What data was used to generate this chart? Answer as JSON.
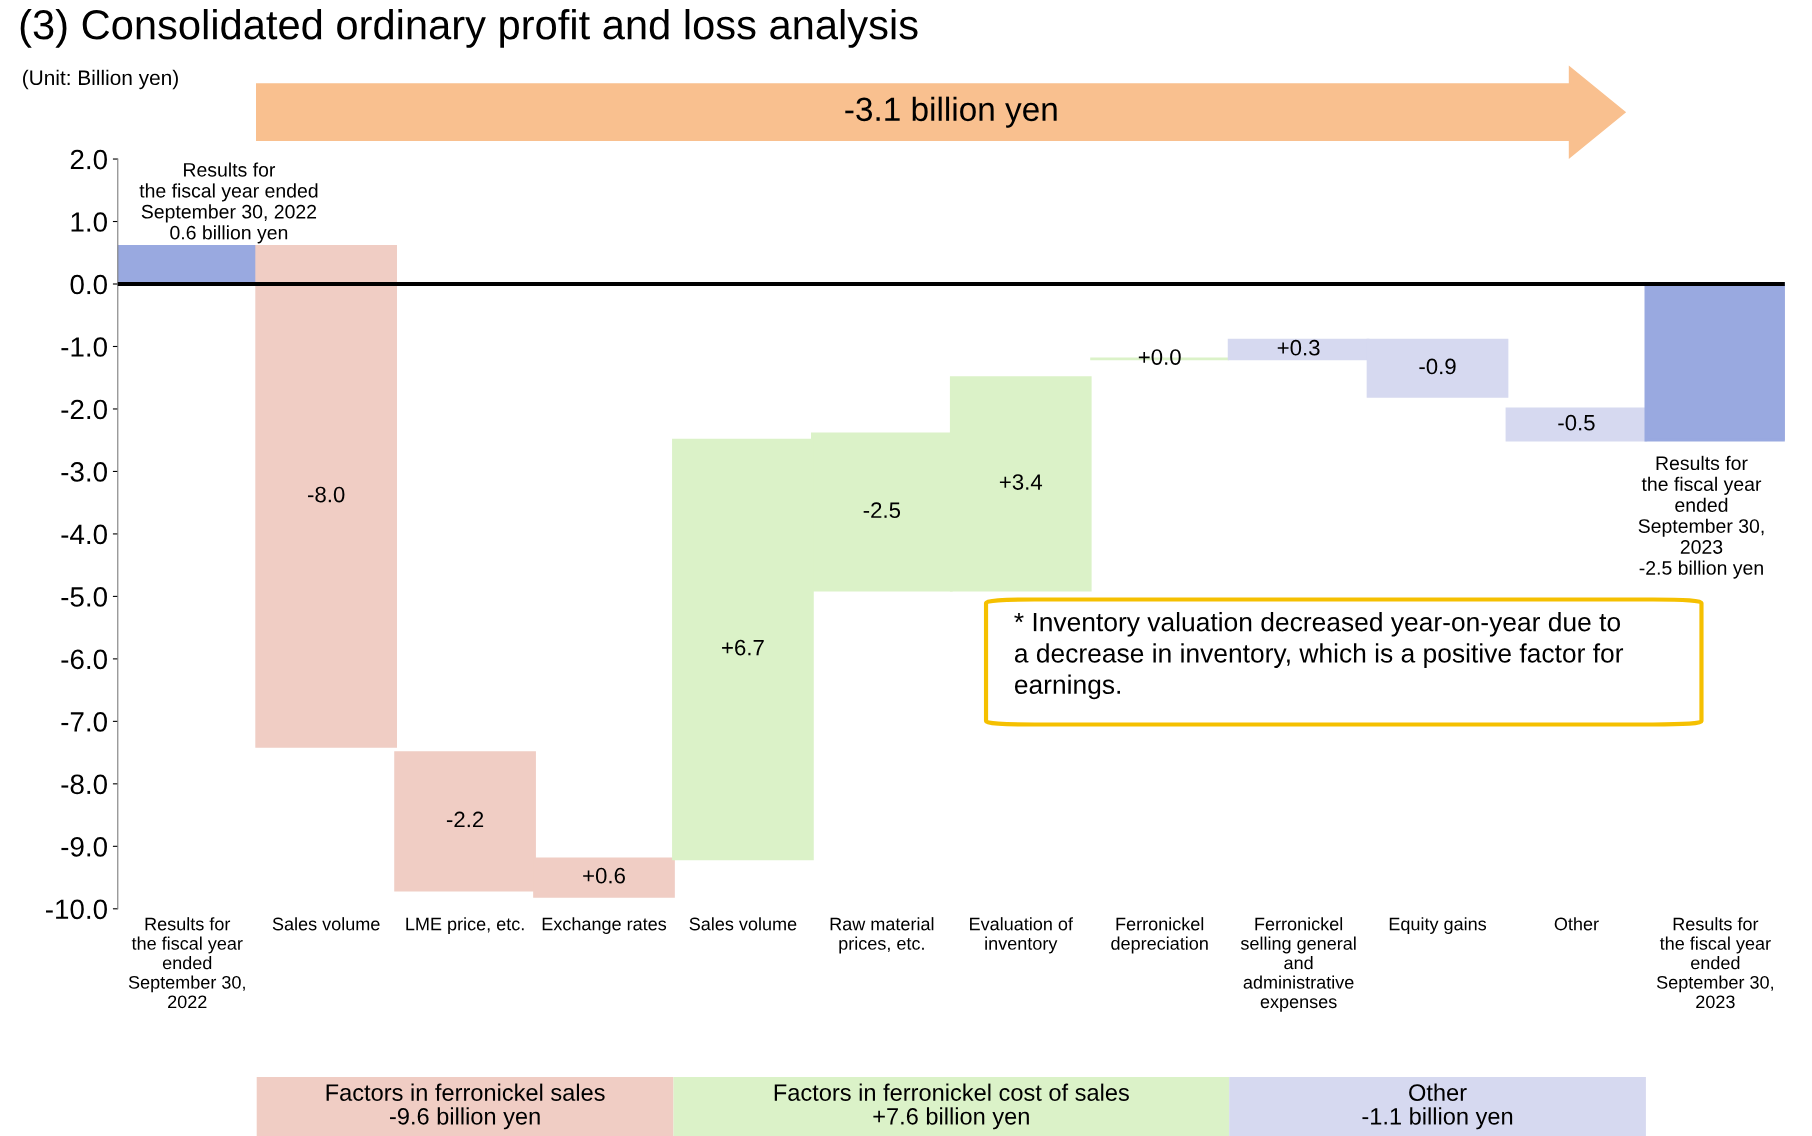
{
  "chart_data": {
    "type": "bar",
    "title": "(3) Consolidated ordinary profit and loss analysis",
    "ylabel": "(Unit: Billion yen)",
    "categories": [
      "Results for\nthe fiscal year\nended\nSeptember 30,\n2022",
      "Sales volume",
      "LME price, etc.",
      "Exchange rates",
      "Sales volume",
      "Raw material\nprices, etc.",
      "Evaluation of\ninventory",
      "Ferronickel\ndepreciation",
      "Ferronickel\nselling general\nand\nadministrative\nexpenses",
      "Equity gains",
      "Other",
      "Results for\nthe fiscal year\nended\nSeptember 30,\n2023"
    ],
    "values": [
      0.6,
      -8.0,
      -2.2,
      0.6,
      6.7,
      -2.5,
      3.4,
      0.0,
      0.3,
      -0.9,
      -0.5,
      -2.5
    ],
    "base": [
      0,
      0.6,
      -7.5,
      -9.8,
      -9.2,
      -2.4,
      -4.9,
      -1.2,
      -1.2,
      -0.9,
      -2.0,
      0
    ],
    "colors": [
      "#99a9e0",
      "#f0cdc4",
      "#f0cdc4",
      "#f0cdc4",
      "#dbf2c8",
      "#dbf2c8",
      "#dbf2c8",
      "#dbf2c8",
      "#d6d9f0",
      "#d6d9f0",
      "#d6d9f0",
      "#99a9e0"
    ],
    "value_labels": [
      "Results for\nthe fiscal year ended\nSeptember 30, 2022\n0.6 billion yen",
      "-8.0",
      "-2.2",
      "+0.6",
      "+6.7",
      "-2.5",
      "+3.4",
      "+0.0",
      "+0.3",
      "-0.9",
      "-0.5",
      "Results for\nthe fiscal year\nended\nSeptember 30,\n2023\n-2.5 billion yen"
    ],
    "ylim": [
      -10.0,
      2.0
    ],
    "yticks": [
      {
        "value": 2,
        "label": "2.0"
      },
      {
        "value": 1,
        "label": "1.0"
      },
      {
        "value": 0,
        "label": "0.0"
      },
      {
        "value": -1,
        "label": "-1.0"
      },
      {
        "value": -2,
        "label": "-2.0"
      },
      {
        "value": -3,
        "label": "-3.0"
      },
      {
        "value": -4,
        "label": "-4.0"
      },
      {
        "value": -5,
        "label": "-5.0"
      },
      {
        "value": -6,
        "label": "-6.0"
      },
      {
        "value": -7,
        "label": "-7.0"
      },
      {
        "value": -8,
        "label": "-8.0"
      },
      {
        "value": -9,
        "label": "-9.0"
      },
      {
        "value": -10,
        "label": "-10.0"
      }
    ],
    "ref_lines": [
      {
        "axis": "y",
        "value": 0,
        "color": "#000000"
      }
    ],
    "grid": false,
    "legend": false,
    "annotations": [
      "-3.1 billion yen",
      "Factors in ferronickel sales\n-9.6 billion yen",
      "Factors in ferronickel cost of sales\n+7.6 billion yen",
      "Other\n-1.1 billion yen",
      "* Inventory valuation decreased year-on-year due to\na decrease in inventory, which is a positive factor for\nearnings."
    ]
  }
}
